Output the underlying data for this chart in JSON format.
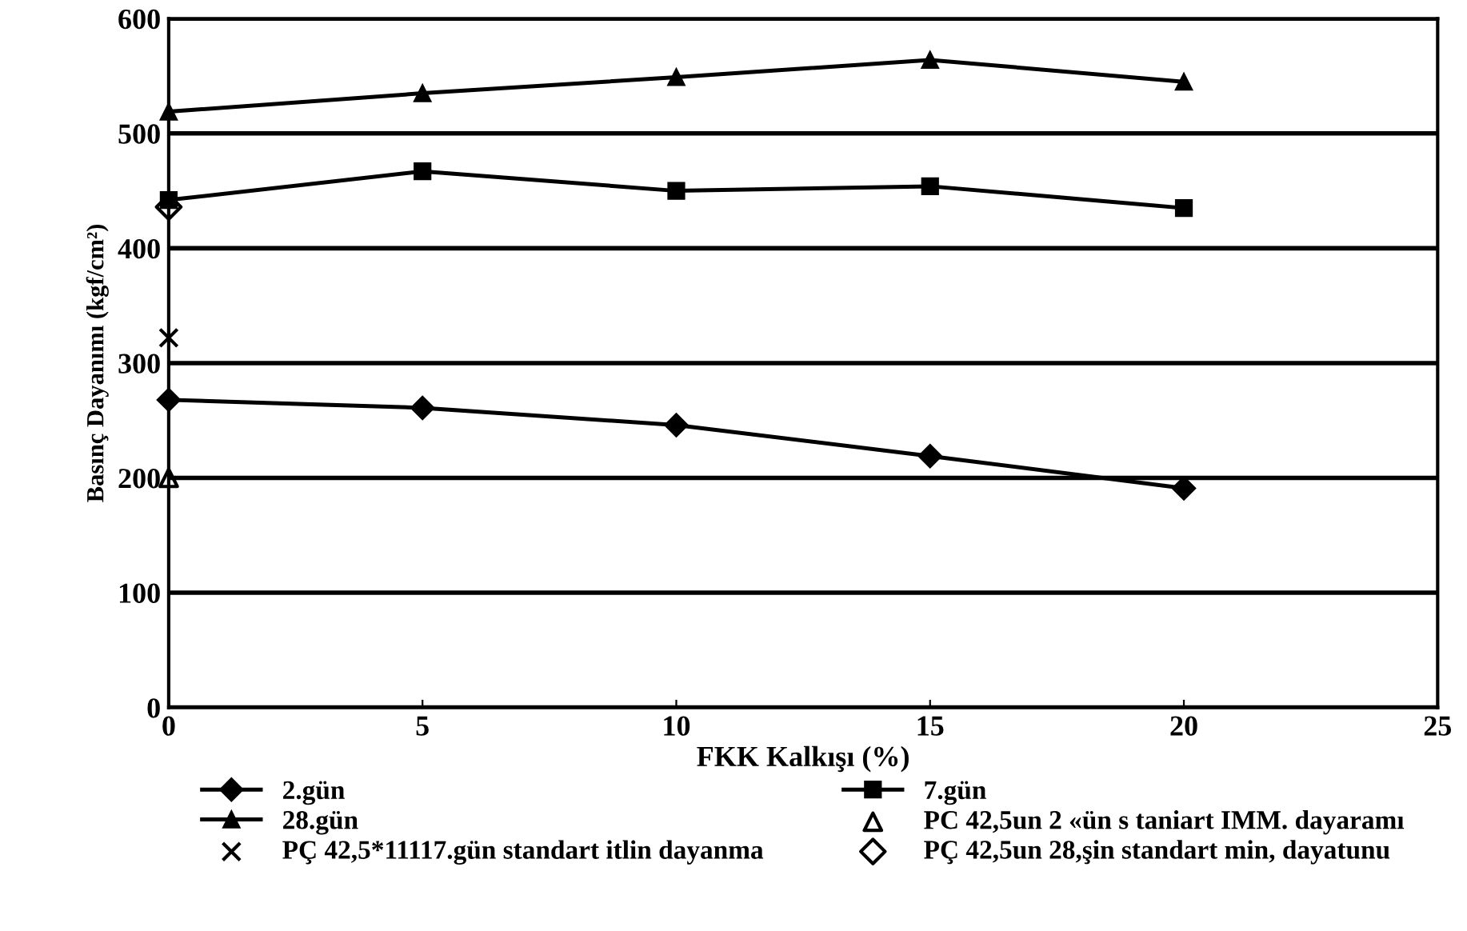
{
  "chart_data": {
    "type": "line",
    "xlabel": "FKK Kalkışı (%)",
    "ylabel": "Basınç Dayanımı (kgf/cm²)",
    "xlim": [
      0,
      25
    ],
    "xticks": [
      0,
      5,
      10,
      15,
      20,
      25
    ],
    "ylim": [
      0,
      600
    ],
    "yticks": [
      0,
      100,
      200,
      300,
      400,
      500,
      600
    ],
    "grid": "y",
    "legend": "bottom",
    "line_style": "solid",
    "series": [
      {
        "name": "2.gün",
        "color": "#000000",
        "marker": "diamond",
        "x": [
          0,
          5,
          10,
          15,
          20
        ],
        "values": [
          268,
          261,
          246,
          219,
          191
        ]
      },
      {
        "name": "7.gün",
        "color": "#000000",
        "marker": "square",
        "x": [
          0,
          5,
          10,
          15,
          20
        ],
        "values": [
          442,
          467,
          450,
          454,
          435
        ]
      },
      {
        "name": "28.gün",
        "color": "#000000",
        "marker": "triangle",
        "x": [
          0,
          5,
          10,
          15,
          20
        ],
        "values": [
          519,
          535,
          549,
          564,
          545
        ]
      },
      {
        "name": "PC 42,5un 2 «ün s taniart IMM. dayaramı",
        "type": "scatter",
        "color": "#000000",
        "marker": "triangle",
        "x": [
          0
        ],
        "values": [
          200
        ]
      },
      {
        "name": "PÇ 42,5*11117.gün standart itlin dayanma",
        "type": "scatter",
        "color": "#000000",
        "marker": "cross",
        "x": [
          0
        ],
        "values": [
          322
        ]
      },
      {
        "name": "PÇ 42,5un 28,şin standart min, dayatunu",
        "type": "scatter",
        "color": "#000000",
        "marker": "diamond",
        "x": [
          0
        ],
        "values": [
          436
        ]
      }
    ]
  }
}
